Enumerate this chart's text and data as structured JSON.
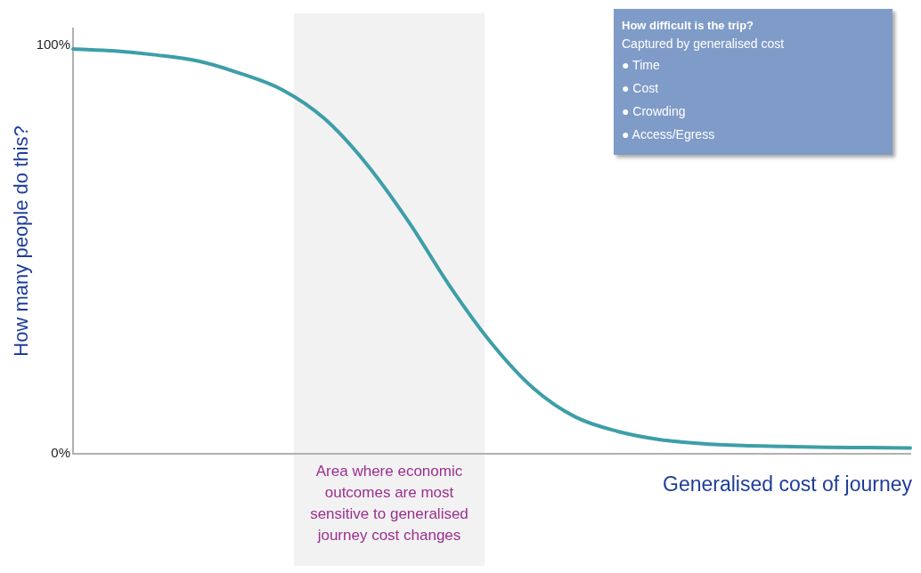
{
  "chart_data": {
    "type": "line",
    "xlabel": "Generalised cost of journey",
    "ylabel": "How many people do this?",
    "categories": [
      null,
      null,
      null,
      null,
      null,
      null,
      null,
      null,
      null,
      null,
      null,
      null,
      null,
      null,
      null,
      null,
      null,
      null,
      null,
      null,
      null
    ],
    "series": [
      {
        "color": "#3d9ea8",
        "values": [
          99,
          98.5,
          97.5,
          96,
          93,
          89,
          82,
          71,
          57,
          41,
          27,
          16,
          9,
          5.5,
          3.5,
          2.5,
          2,
          1.8,
          1.6,
          1.5,
          1.4
        ]
      }
    ],
    "ylim": [
      0,
      104
    ],
    "yticks": [
      {
        "value": 0,
        "label": "0%"
      },
      {
        "value": 100,
        "label": "100%"
      }
    ],
    "tick_labels": "y",
    "grid": false,
    "legend": false,
    "marker": "none",
    "line_style": "solid",
    "annotations": [
      "How difficult  is the trip?",
      "Captured by generalised cost",
      "● Time",
      "● Cost",
      "● Crowding",
      "● Access/Egress",
      "Area where economic outcomes are most sensitive to generalised journey cost changes"
    ]
  }
}
